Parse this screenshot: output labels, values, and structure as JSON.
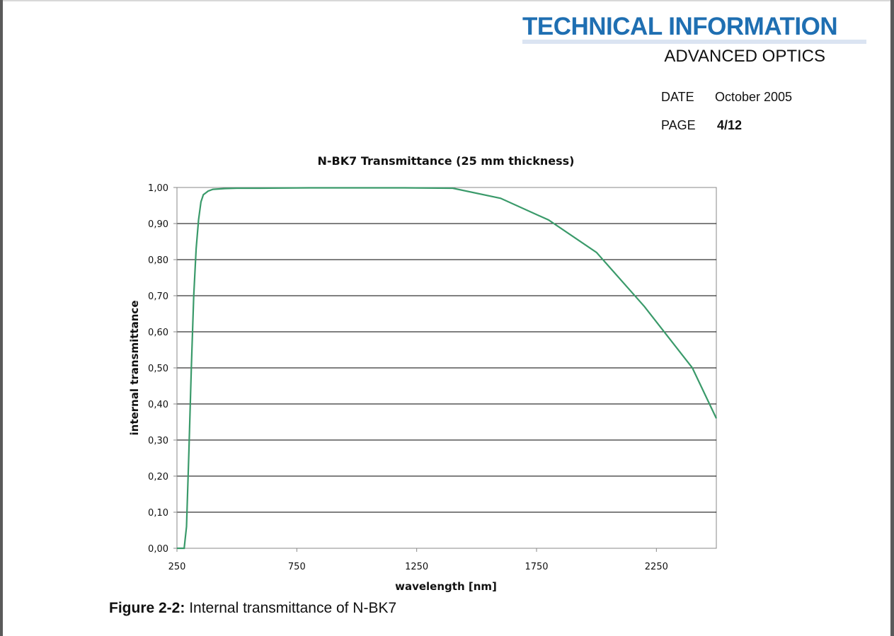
{
  "header": {
    "title": "TECHNICAL INFORMATION",
    "subtitle": "ADVANCED OPTICS",
    "date_label": "DATE",
    "date_value": "October 2005",
    "page_label": "PAGE",
    "page_value": "4/12"
  },
  "colors": {
    "brand": "#1f6fb2",
    "series_line": "#3a9a6a"
  },
  "figure": {
    "caption_label": "Figure 2-2:",
    "caption_text": " Internal transmittance of N-BK7"
  },
  "chart_data": {
    "type": "line",
    "title": "N-BK7 Transmittance (25 mm thickness)",
    "xlabel": "wavelength [nm]",
    "ylabel": "internal transmittance",
    "xlim": [
      250,
      2500
    ],
    "ylim": [
      0,
      1
    ],
    "x_ticks": [
      250,
      750,
      1250,
      1750,
      2250
    ],
    "x_tick_labels": [
      "250",
      "750",
      "1250",
      "1750",
      "2250"
    ],
    "y_ticks": [
      0,
      0.1,
      0.2,
      0.3,
      0.4,
      0.5,
      0.6,
      0.7,
      0.8,
      0.9,
      1.0
    ],
    "y_tick_labels": [
      "0,00",
      "0,10",
      "0,20",
      "0,30",
      "0,40",
      "0,50",
      "0,60",
      "0,70",
      "0,80",
      "0,90",
      "1,00"
    ],
    "grid": "horizontal",
    "series": [
      {
        "x": [
          250,
          280,
          290,
          300,
          310,
          320,
          330,
          340,
          350,
          360,
          370,
          380,
          400,
          450,
          500,
          600,
          800,
          1000,
          1200,
          1400,
          1600,
          1800,
          2000,
          2200,
          2400,
          2500
        ],
        "y": [
          0.0,
          0.0,
          0.06,
          0.27,
          0.5,
          0.7,
          0.83,
          0.91,
          0.96,
          0.98,
          0.985,
          0.99,
          0.995,
          0.997,
          0.998,
          0.998,
          0.999,
          0.999,
          0.999,
          0.998,
          0.97,
          0.91,
          0.82,
          0.67,
          0.5,
          0.36
        ]
      }
    ]
  }
}
